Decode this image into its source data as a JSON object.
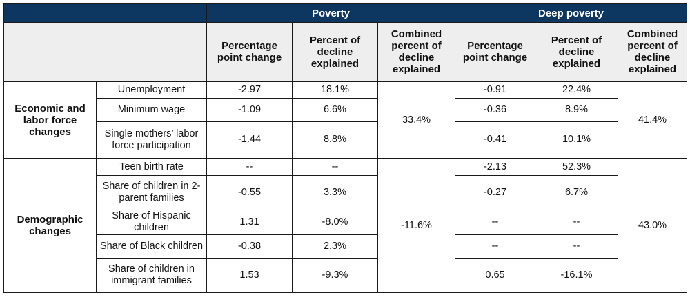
{
  "header": {
    "poverty": "Poverty",
    "deep_poverty": "Deep poverty",
    "columns": [
      "Percentage point change",
      "Percent of decline explained",
      "Combined percent of decline explained",
      "Percentage point change",
      "Percent of decline explained",
      "Combined percent of decline explained"
    ]
  },
  "groups": [
    {
      "label": "Economic and labor force changes",
      "poverty_combined": "33.4%",
      "deep_combined": "41.4%",
      "rows": [
        {
          "factor": "Unemployment",
          "pov_pp": "-2.97",
          "pov_pct": "18.1%",
          "deep_pp": "-0.91",
          "deep_pct": "22.4%"
        },
        {
          "factor": "Minimum wage",
          "pov_pp": "-1.09",
          "pov_pct": "6.6%",
          "deep_pp": "-0.36",
          "deep_pct": "8.9%"
        },
        {
          "factor": "Single mothers’ labor force participation",
          "pov_pp": "-1.44",
          "pov_pct": "8.8%",
          "deep_pp": "-0.41",
          "deep_pct": "10.1%"
        }
      ]
    },
    {
      "label": "Demographic changes",
      "poverty_combined": "-11.6%",
      "deep_combined": "43.0%",
      "rows": [
        {
          "factor": "Teen birth rate",
          "pov_pp": "--",
          "pov_pct": "--",
          "deep_pp": "-2.13",
          "deep_pct": "52.3%"
        },
        {
          "factor": "Share of children in 2-parent families",
          "pov_pp": "-0.55",
          "pov_pct": "3.3%",
          "deep_pp": "-0.27",
          "deep_pct": "6.7%"
        },
        {
          "factor": "Share of Hispanic children",
          "pov_pp": "1.31",
          "pov_pct": "-8.0%",
          "deep_pp": "--",
          "deep_pct": "--"
        },
        {
          "factor": "Share of Black children",
          "pov_pp": "-0.38",
          "pov_pct": "2.3%",
          "deep_pp": "--",
          "deep_pct": "--"
        },
        {
          "factor": "Share of children in immigrant families",
          "pov_pp": "1.53",
          "pov_pct": "-9.3%",
          "deep_pp": "0.65",
          "deep_pct": "-16.1%"
        }
      ]
    }
  ]
}
